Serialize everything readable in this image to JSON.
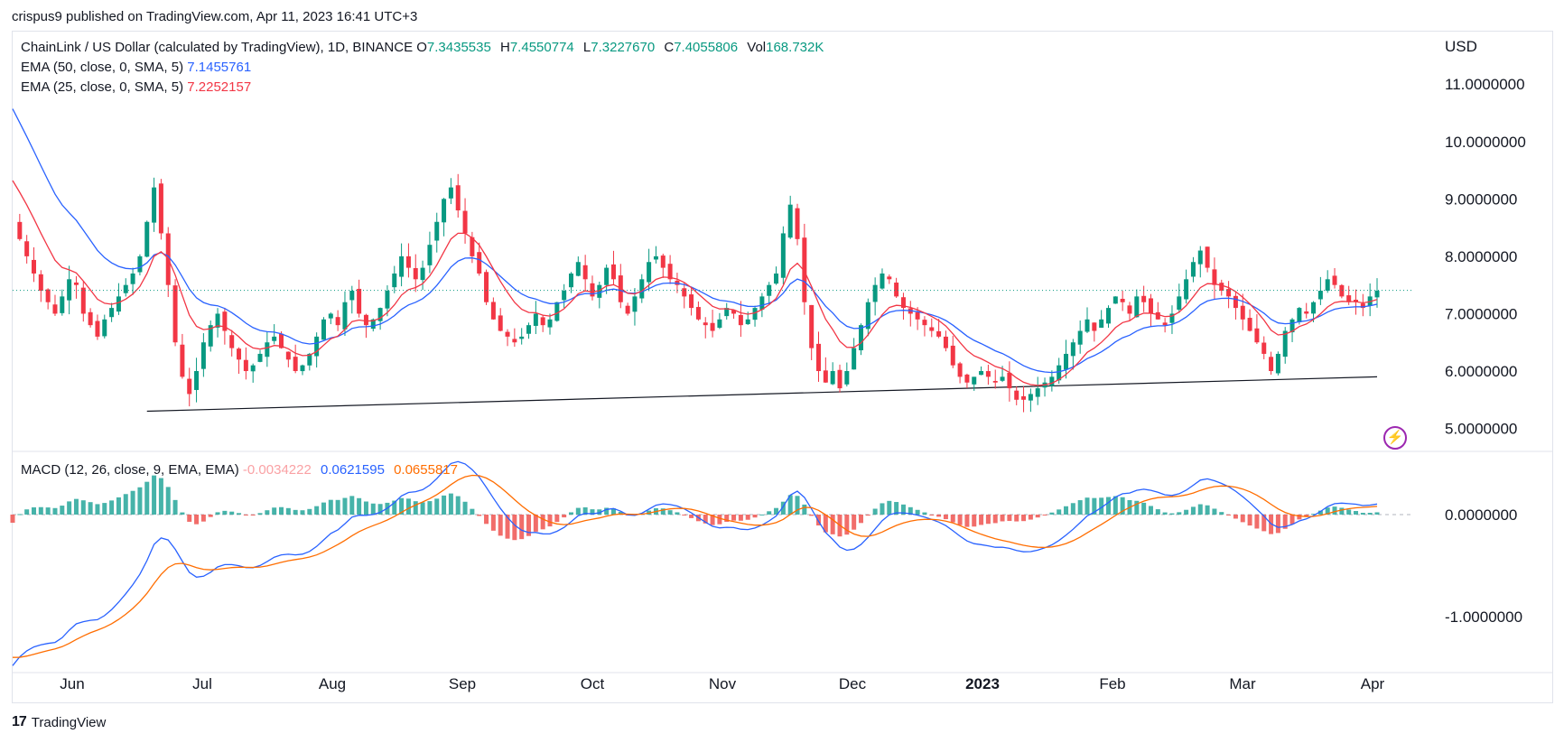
{
  "header": {
    "publisher_line": "crispus9 published on TradingView.com, Apr 11, 2023 16:41 UTC+3"
  },
  "legend": {
    "symbol": "ChainLink / US Dollar (calculated by TradingView), 1D, BINANCE",
    "o_key": "O",
    "o_val": "7.3435535",
    "h_key": "H",
    "h_val": "7.4550774",
    "l_key": "L",
    "l_val": "7.3227670",
    "c_key": "C",
    "c_val": "7.4055806",
    "vol_key": "Vol",
    "vol_val": "168.732K",
    "ema50_label": "EMA (50, close, 0, SMA, 5)",
    "ema50_val": "7.1455761",
    "ema25_label": "EMA (25, close, 0, SMA, 5)",
    "ema25_val": "7.2252157",
    "macd_label": "MACD (12, 26, close, 9, EMA, EMA)",
    "macd_hist_val": "-0.0034222",
    "macd_val": "0.0621595",
    "macd_signal_val": "0.0655817"
  },
  "currency": "USD",
  "footer": {
    "brand": "TradingView"
  },
  "colors": {
    "up": "#089981",
    "down": "#f23645",
    "ema50": "#2962ff",
    "ema25": "#f23645",
    "macd": "#2962ff",
    "signal": "#ff6d00",
    "hist_up": "#26a69a",
    "hist_down": "#ef5350"
  },
  "icons": {
    "bolt": "lightning-bolt-icon"
  },
  "chart_data": [
    {
      "type": "candlestick",
      "title": "ChainLink / US Dollar (calculated by TradingView), 1D, BINANCE",
      "xaxis_ticks": [
        "Jun",
        "Jul",
        "Aug",
        "Sep",
        "Oct",
        "Nov",
        "Dec",
        "2023",
        "Feb",
        "Mar",
        "Apr"
      ],
      "yaxis_ticks": [
        "11.0000000",
        "10.0000000",
        "9.0000000",
        "8.0000000",
        "7.0000000",
        "6.0000000",
        "5.0000000"
      ],
      "ylim": [
        4.6,
        11.9
      ],
      "last_price": 7.4055806,
      "close_series": [
        8.6,
        8.3,
        8.0,
        7.7,
        7.4,
        7.2,
        7.0,
        7.3,
        7.6,
        7.5,
        7.0,
        6.8,
        6.6,
        6.9,
        7.1,
        7.3,
        7.5,
        7.7,
        8.0,
        8.6,
        9.2,
        8.4,
        7.5,
        6.5,
        5.9,
        5.6,
        6.0,
        6.5,
        6.8,
        7.0,
        6.7,
        6.4,
        6.2,
        6.0,
        6.1,
        6.3,
        6.5,
        6.6,
        6.4,
        6.2,
        6.0,
        6.1,
        6.3,
        6.6,
        6.9,
        7.0,
        6.8,
        7.2,
        7.4,
        7.0,
        6.8,
        6.9,
        7.1,
        7.4,
        7.7,
        8.0,
        7.8,
        7.6,
        7.8,
        8.2,
        8.6,
        9.0,
        9.2,
        8.8,
        8.4,
        8.0,
        7.7,
        7.2,
        6.9,
        6.7,
        6.6,
        6.5,
        6.6,
        6.8,
        7.0,
        6.8,
        6.9,
        7.2,
        7.4,
        7.7,
        7.9,
        7.6,
        7.3,
        7.5,
        7.8,
        7.6,
        7.2,
        7.0,
        7.3,
        7.6,
        7.9,
        8.0,
        7.8,
        7.6,
        7.5,
        7.3,
        7.1,
        6.9,
        6.8,
        6.7,
        6.9,
        7.1,
        7.0,
        6.8,
        6.9,
        7.1,
        7.3,
        7.5,
        7.7,
        8.4,
        8.9,
        8.3,
        7.2,
        6.4,
        6.0,
        5.8,
        6.0,
        5.7,
        6.0,
        6.4,
        6.8,
        7.2,
        7.5,
        7.7,
        7.6,
        7.3,
        7.1,
        7.0,
        6.9,
        6.8,
        6.7,
        6.6,
        6.4,
        6.1,
        5.9,
        5.8,
        5.9,
        6.0,
        5.9,
        5.8,
        5.9,
        5.7,
        5.5,
        5.5,
        5.6,
        5.7,
        5.8,
        5.9,
        6.1,
        6.3,
        6.5,
        6.7,
        6.9,
        6.7,
        6.9,
        7.1,
        7.3,
        7.2,
        7.0,
        7.3,
        7.2,
        7.0,
        6.9,
        6.8,
        7.0,
        7.3,
        7.6,
        7.9,
        8.1,
        7.8,
        7.5,
        7.4,
        7.3,
        7.1,
        6.9,
        6.7,
        6.5,
        6.3,
        6.0,
        6.3,
        6.7,
        6.9,
        7.1,
        7.0,
        7.2,
        7.4,
        7.6,
        7.5,
        7.3,
        7.2,
        7.2,
        7.1,
        7.3,
        7.4
      ],
      "ema50_last": 7.1455761,
      "ema25_last": 7.2252157,
      "support_line": {
        "from": [
          0.0,
          5.3
        ],
        "to": [
          1.0,
          5.9
        ]
      }
    },
    {
      "type": "line",
      "title": "MACD (12, 26, close, 9, EMA, EMA)",
      "yaxis_ticks": [
        "0.0000000",
        "-1.0000000"
      ],
      "ylim": [
        -1.55,
        0.62
      ],
      "series": [
        {
          "name": "MACD",
          "last": 0.0621595
        },
        {
          "name": "Signal",
          "last": 0.0655817
        },
        {
          "name": "Histogram",
          "last": -0.0034222
        }
      ]
    }
  ]
}
